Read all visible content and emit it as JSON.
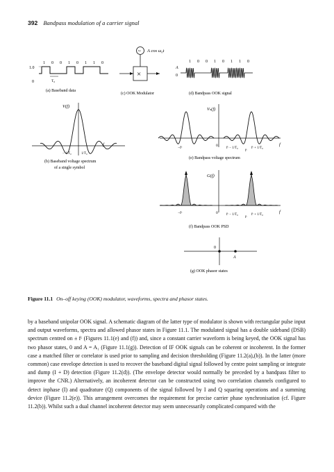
{
  "header": {
    "page_number": "392",
    "running_title": "Bandpass modulation of a carrier signal"
  },
  "figure": {
    "bits": [
      "1",
      "0",
      "0",
      "1",
      "0",
      "1",
      "1",
      "0"
    ],
    "amp_label": "1.0",
    "zero_label": "0",
    "To_label": "T₀",
    "baseband_label": "(a) Baseband data",
    "carrier_label": "A cos ω₀t",
    "multiply_symbol": "×",
    "tilde_symbol": "~",
    "modulator_label": "(c) OOK Modulator",
    "ook_A": "A",
    "ook_zero": "0",
    "ook_signal_label": "(d) Bandpass OOK signal",
    "vf_label": "V(f)",
    "baseband_spec_label_1": "(b) Baseband voltage spectrum",
    "baseband_spec_label_2": "of a single symbol",
    "neg_1_To": "− 1/T₀",
    "pos_1_To": "1/T₀",
    "f_label": "f",
    "vsf_label": "Vₛ(f)",
    "bp_spec_label": "(e) Bandpass voltage spectrum",
    "neg_fc": "−fᶜ",
    "fc": "fᶜ",
    "fc_minus": "fᶜ − 1/T₀",
    "fc_plus": "fᶜ + 1/T₀",
    "gf_label": "G(f)",
    "psd_label": "(f) Bandpass OOK PSD",
    "phasor_zero": "0",
    "phasor_A": "A",
    "phasor_label": "(g) OOK phasor states"
  },
  "caption": {
    "number": "Figure 11.1",
    "text": "On–off keying (OOK) modulator, waveforms, spectra and phasor states."
  },
  "body_text": "by a baseband unipolar OOK signal. A schematic diagram of the latter type of modulator is shown with rectangular pulse input and output waveforms, spectra and allowed phasor states in Figure 11.1. The modulated signal has a double sideband (DSB) spectrum centred on ± fᶜ (Figures 11.1(e) and (f)) and, since a constant carrier waveform is being keyed, the OOK signal has two phasor states, 0 and A = A₁ (Figure 11.1(g)). Detection of IF OOK signals can be coherent or incoherent. In the former case a matched filter or correlator is used prior to sampling and decision thresholding (Figure 11.2(a),(b)). In the latter (more common) case envelope detection is used to recover the baseband digital signal followed by centre point sampling or integrate and dump (I + D) detection (Figure 11.2(d)). (The envelope detector would normally be preceded by a bandpass filter to improve the CNR.) Alternatively, an incoherent detector can be constructed using two correlation channels configured to detect inphase (I) and quadrature (Q) components of the signal followed by I and Q squaring operations and a summing device (Figure 11.2(e)). This arrangement overcomes the requirement for precise carrier phase synchronisation (cf. Figure 11.2(b)). Whilst such a dual channel incoherent detector may seem unnecessarily complicated compared with the"
}
